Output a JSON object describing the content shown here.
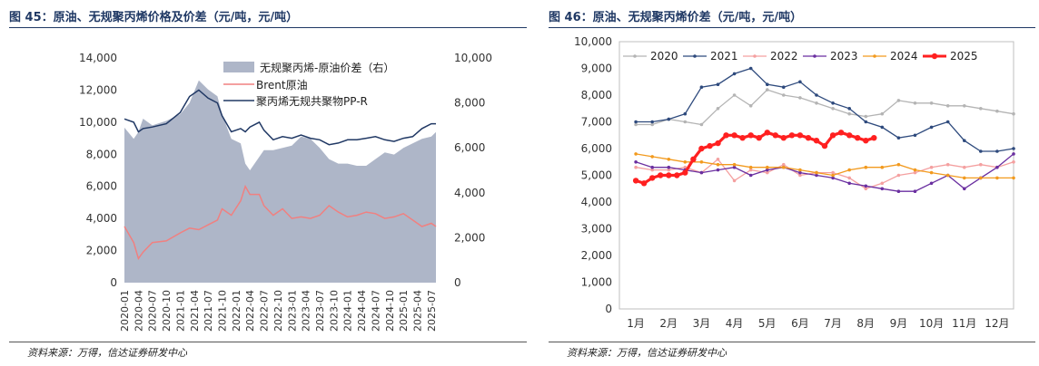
{
  "left": {
    "title": "图 45：原油、无规聚丙烯价格及价差（元/吨，元/吨）",
    "source": "资料来源：万得，信达证券研发中心",
    "chart_data": {
      "type": "line",
      "ylim_left": [
        0,
        14000
      ],
      "ylim_right": [
        0,
        10000
      ],
      "yticks_left": [
        "0",
        "2,000",
        "4,000",
        "6,000",
        "8,000",
        "10,000",
        "12,000",
        "14,000"
      ],
      "yticks_right": [
        "0",
        "2,000",
        "4,000",
        "6,000",
        "8,000",
        "10,000"
      ],
      "xticks": [
        "2020-01",
        "2020-04",
        "2020-07",
        "2020-10",
        "2021-01",
        "2021-04",
        "2021-07",
        "2021-10",
        "2022-01",
        "2022-04",
        "2022-07",
        "2022-10",
        "2023-01",
        "2023-04",
        "2023-07",
        "2023-10",
        "2024-01",
        "2024-04",
        "2024-07",
        "2024-10",
        "2025-01",
        "2025-04",
        "2025-07"
      ],
      "legend": [
        "无规聚丙烯-原油价差（右）",
        "Brent原油",
        "聚丙烯无规共聚物PP-R"
      ],
      "colors": {
        "spread": "#aeb6c8",
        "brent": "#f08080",
        "ppr": "#203864"
      },
      "x": [
        "2020-01",
        "2020-03",
        "2020-04",
        "2020-05",
        "2020-07",
        "2020-10",
        "2021-01",
        "2021-03",
        "2021-05",
        "2021-07",
        "2021-09",
        "2021-10",
        "2021-12",
        "2022-02",
        "2022-03",
        "2022-04",
        "2022-06",
        "2022-07",
        "2022-09",
        "2022-11",
        "2023-01",
        "2023-03",
        "2023-05",
        "2023-07",
        "2023-09",
        "2023-11",
        "2024-01",
        "2024-03",
        "2024-05",
        "2024-07",
        "2024-09",
        "2024-11",
        "2025-01",
        "2025-03",
        "2025-05",
        "2025-07",
        "2025-08"
      ],
      "series": [
        {
          "name": "无规聚丙烯-原油价差（右）",
          "axis": "right",
          "values": [
            6900,
            6400,
            6700,
            7300,
            7000,
            7200,
            7500,
            8000,
            9000,
            8600,
            8300,
            7500,
            6400,
            6200,
            5300,
            5000,
            5600,
            5900,
            5900,
            6000,
            6100,
            6500,
            6400,
            6000,
            5500,
            5300,
            5300,
            5200,
            5200,
            5500,
            5800,
            5700,
            6000,
            6200,
            6400,
            6500,
            6700
          ]
        },
        {
          "name": "Brent原油",
          "axis": "left",
          "values": [
            3500,
            2500,
            1500,
            1900,
            2500,
            2600,
            3100,
            3400,
            3300,
            3600,
            3900,
            4600,
            4200,
            5100,
            6000,
            5500,
            5500,
            4800,
            4200,
            4600,
            4000,
            4100,
            4000,
            4200,
            4800,
            4400,
            4100,
            4200,
            4400,
            4300,
            4000,
            4100,
            4300,
            3900,
            3500,
            3700,
            3500
          ]
        },
        {
          "name": "聚丙烯无规共聚物PP-R",
          "axis": "left",
          "values": [
            10200,
            10000,
            9400,
            9600,
            9700,
            9900,
            10600,
            11600,
            12000,
            11500,
            11200,
            10400,
            9400,
            9600,
            9400,
            9700,
            10000,
            9500,
            8900,
            9100,
            9000,
            9200,
            9000,
            8900,
            8600,
            8700,
            8900,
            8900,
            9000,
            9100,
            8900,
            8800,
            9000,
            9100,
            9600,
            9900,
            9900
          ]
        }
      ]
    }
  },
  "right": {
    "title": "图 46：原油、无规聚丙烯价差（元/吨，元/吨）",
    "source": "资料来源：万得，信达证券研发中心",
    "chart_data": {
      "type": "line",
      "ylim": [
        0,
        10000
      ],
      "yticks": [
        "0",
        "1,000",
        "2,000",
        "3,000",
        "4,000",
        "5,000",
        "6,000",
        "7,000",
        "8,000",
        "9,000",
        "10,000"
      ],
      "categories": [
        "1月",
        "2月",
        "3月",
        "4月",
        "5月",
        "6月",
        "7月",
        "8月",
        "9月",
        "10月",
        "11月",
        "12月"
      ],
      "legend_position": "top",
      "series": [
        {
          "name": "2020",
          "color": "#b4b4b4",
          "x": [
            0.0,
            0.5,
            1.0,
            1.5,
            2.0,
            2.5,
            3.0,
            3.5,
            4.0,
            4.5,
            5.0,
            5.5,
            6.0,
            6.5,
            7.0,
            7.5,
            8.0,
            8.5,
            9.0,
            9.5,
            10.0,
            10.5,
            11.0,
            11.5
          ],
          "values": [
            6900,
            6900,
            7100,
            7000,
            6900,
            7500,
            8000,
            7600,
            8200,
            8000,
            7900,
            7700,
            7500,
            7300,
            7200,
            7300,
            7800,
            7700,
            7700,
            7600,
            7600,
            7500,
            7400,
            7300
          ]
        },
        {
          "name": "2021",
          "color": "#2e4a7d",
          "x": [
            0.0,
            0.5,
            1.0,
            1.5,
            2.0,
            2.5,
            3.0,
            3.5,
            4.0,
            4.5,
            5.0,
            5.5,
            6.0,
            6.5,
            7.0,
            7.5,
            8.0,
            8.5,
            9.0,
            9.5,
            10.0,
            10.5,
            11.0,
            11.5
          ],
          "values": [
            7000,
            7000,
            7100,
            7300,
            8300,
            8400,
            8800,
            9000,
            8400,
            8300,
            8500,
            8000,
            7700,
            7500,
            7000,
            6800,
            6400,
            6500,
            6800,
            7000,
            6300,
            5900,
            5900,
            6000
          ]
        },
        {
          "name": "2022",
          "color": "#f4a0a0",
          "x": [
            0.0,
            0.5,
            1.0,
            1.5,
            2.0,
            2.5,
            3.0,
            3.5,
            4.0,
            4.5,
            5.0,
            5.5,
            6.0,
            6.5,
            7.0,
            7.5,
            8.0,
            8.5,
            9.0,
            9.5,
            10.0,
            10.5,
            11.0,
            11.5
          ],
          "values": [
            5300,
            5200,
            5200,
            5300,
            5100,
            5600,
            4800,
            5200,
            5100,
            5400,
            5000,
            5100,
            5100,
            4900,
            4500,
            4700,
            5000,
            5100,
            5300,
            5400,
            5300,
            5400,
            5300,
            5500
          ]
        },
        {
          "name": "2023",
          "color": "#6a2fa0",
          "x": [
            0.0,
            0.5,
            1.0,
            1.5,
            2.0,
            2.5,
            3.0,
            3.5,
            4.0,
            4.5,
            5.0,
            5.5,
            6.0,
            6.5,
            7.0,
            7.5,
            8.0,
            8.5,
            9.0,
            9.5,
            10.0,
            10.5,
            11.0,
            11.5
          ],
          "values": [
            5500,
            5300,
            5300,
            5200,
            5100,
            5200,
            5300,
            5000,
            5200,
            5300,
            5100,
            5000,
            4900,
            4700,
            4600,
            4500,
            4400,
            4400,
            4700,
            5000,
            4500,
            4900,
            5300,
            5800
          ]
        },
        {
          "name": "2024",
          "color": "#f29a1e",
          "x": [
            0.0,
            0.5,
            1.0,
            1.5,
            2.0,
            2.5,
            3.0,
            3.5,
            4.0,
            4.5,
            5.0,
            5.5,
            6.0,
            6.5,
            7.0,
            7.5,
            8.0,
            8.5,
            9.0,
            9.5,
            10.0,
            10.5,
            11.0,
            11.5
          ],
          "values": [
            5800,
            5700,
            5600,
            5500,
            5500,
            5400,
            5400,
            5300,
            5300,
            5300,
            5200,
            5100,
            5000,
            5200,
            5300,
            5300,
            5400,
            5200,
            5100,
            5000,
            4900,
            4900,
            4900,
            4900
          ]
        },
        {
          "name": "2025",
          "color": "#ff2020",
          "x": [
            0.0,
            0.25,
            0.5,
            0.75,
            1.0,
            1.25,
            1.5,
            1.75,
            2.0,
            2.25,
            2.5,
            2.75,
            3.0,
            3.25,
            3.5,
            3.75,
            4.0,
            4.25,
            4.5,
            4.75,
            5.0,
            5.25,
            5.5,
            5.75,
            6.0,
            6.25,
            6.5,
            6.75,
            7.0,
            7.25
          ],
          "values": [
            4800,
            4700,
            4900,
            5000,
            5000,
            5000,
            5100,
            5600,
            6000,
            6100,
            6200,
            6500,
            6500,
            6400,
            6500,
            6400,
            6600,
            6500,
            6400,
            6500,
            6500,
            6400,
            6300,
            6100,
            6500,
            6600,
            6500,
            6400,
            6300,
            6400
          ]
        }
      ]
    }
  }
}
